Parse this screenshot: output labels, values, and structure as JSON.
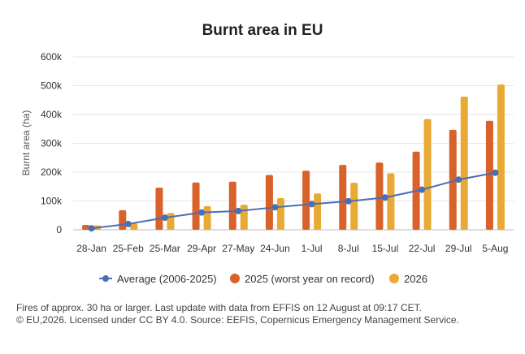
{
  "chart_data": {
    "type": "bar",
    "title": "Burnt area in EU",
    "ylabel": "Burnt area (ha)",
    "xlabel": "",
    "ylim": [
      0,
      600000
    ],
    "yticks": [
      0,
      100000,
      200000,
      300000,
      400000,
      500000,
      600000
    ],
    "ytick_labels": [
      "0",
      "100k",
      "200k",
      "300k",
      "400k",
      "500k",
      "600k"
    ],
    "categories": [
      "28-Jan",
      "25-Feb",
      "25-Mar",
      "29-Apr",
      "27-May",
      "24-Jun",
      "1-Jul",
      "8-Jul",
      "15-Jul",
      "22-Jul",
      "29-Jul",
      "5-Aug"
    ],
    "grid": true,
    "legend_position": "bottom",
    "series": [
      {
        "name": "Average (2006-2025)",
        "type": "line",
        "color": "#4a6fb3",
        "values": [
          5000,
          20000,
          42000,
          60000,
          65000,
          78000,
          89000,
          99000,
          112000,
          139000,
          174000,
          198000
        ]
      },
      {
        "name": "2025 (worst year on record)",
        "type": "bar",
        "color": "#d9622b",
        "values": [
          17000,
          68000,
          146000,
          164000,
          167000,
          190000,
          205000,
          225000,
          233000,
          271000,
          347000,
          378000
        ]
      },
      {
        "name": "2026",
        "type": "bar",
        "color": "#e9a935",
        "values": [
          15000,
          22000,
          58000,
          82000,
          87000,
          110000,
          126000,
          163000,
          196000,
          384000,
          462000,
          504000
        ]
      }
    ]
  },
  "footnote": {
    "line1": "Fires of approx. 30 ha or larger. Last update with data from EFFIS on 12 August at 09:17 CET.",
    "line2": "© EU,2026. Licensed under CC BY 4.0. Source: EEFIS, Copernicus Emergency Management Service."
  }
}
